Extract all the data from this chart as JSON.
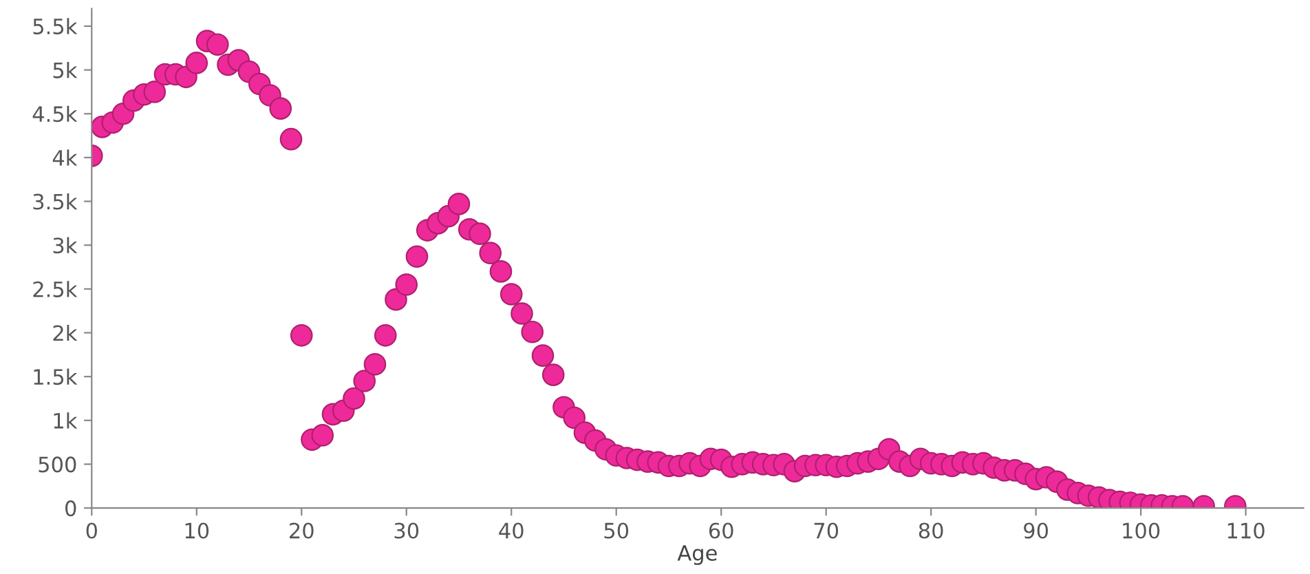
{
  "chart_data": {
    "type": "scatter",
    "xlabel": "Age",
    "x": [
      0,
      1,
      2,
      3,
      4,
      5,
      6,
      7,
      8,
      9,
      10,
      11,
      12,
      13,
      14,
      15,
      16,
      17,
      18,
      19,
      20,
      21,
      22,
      23,
      24,
      25,
      26,
      27,
      28,
      29,
      30,
      31,
      32,
      33,
      34,
      35,
      36,
      37,
      38,
      39,
      40,
      41,
      42,
      43,
      44,
      45,
      46,
      47,
      48,
      49,
      50,
      51,
      52,
      53,
      54,
      55,
      56,
      57,
      58,
      59,
      60,
      61,
      62,
      63,
      64,
      65,
      66,
      67,
      68,
      69,
      70,
      71,
      72,
      73,
      74,
      75,
      76,
      77,
      78,
      79,
      80,
      81,
      82,
      83,
      84,
      85,
      86,
      87,
      88,
      89,
      90,
      91,
      92,
      93,
      94,
      95,
      96,
      97,
      98,
      99,
      100,
      101,
      102,
      103,
      104,
      106,
      109
    ],
    "series": [
      {
        "color": "#ee2a9a",
        "values": [
          4020,
          4350,
          4400,
          4500,
          4650,
          4720,
          4750,
          4950,
          4950,
          4920,
          5080,
          5330,
          5290,
          5060,
          5110,
          4980,
          4840,
          4710,
          4560,
          4210,
          1970,
          780,
          830,
          1070,
          1110,
          1250,
          1450,
          1640,
          1970,
          2380,
          2550,
          2870,
          3170,
          3250,
          3330,
          3470,
          3180,
          3130,
          2910,
          2700,
          2440,
          2220,
          2010,
          1740,
          1520,
          1150,
          1030,
          860,
          770,
          670,
          600,
          570,
          550,
          530,
          520,
          480,
          480,
          510,
          480,
          560,
          550,
          470,
          500,
          520,
          500,
          490,
          500,
          420,
          480,
          490,
          490,
          470,
          480,
          510,
          530,
          560,
          670,
          530,
          480,
          560,
          510,
          500,
          480,
          520,
          500,
          510,
          460,
          430,
          430,
          390,
          330,
          350,
          300,
          210,
          170,
          140,
          120,
          90,
          70,
          60,
          40,
          30,
          30,
          20,
          20,
          20,
          20
        ]
      }
    ],
    "xlim": [
      0,
      115.5
    ],
    "ylim": [
      0,
      5700
    ],
    "xticks": [
      0,
      10,
      20,
      30,
      40,
      50,
      60,
      70,
      80,
      90,
      100,
      110
    ],
    "yticks": [
      0,
      {
        "value": 500,
        "label": "500"
      },
      {
        "value": 1000,
        "label": "1k"
      },
      {
        "value": 1500,
        "label": "1.5k"
      },
      {
        "value": 2000,
        "label": "2k"
      },
      {
        "value": 2500,
        "label": "2.5k"
      },
      {
        "value": 3000,
        "label": "3k"
      },
      {
        "value": 3500,
        "label": "3.5k"
      },
      {
        "value": 4000,
        "label": "4k"
      },
      {
        "value": 4500,
        "label": "4.5k"
      },
      {
        "value": 5000,
        "label": "5k"
      },
      {
        "value": 5500,
        "label": "5.5k"
      }
    ],
    "grid": false,
    "marker": "circle"
  }
}
